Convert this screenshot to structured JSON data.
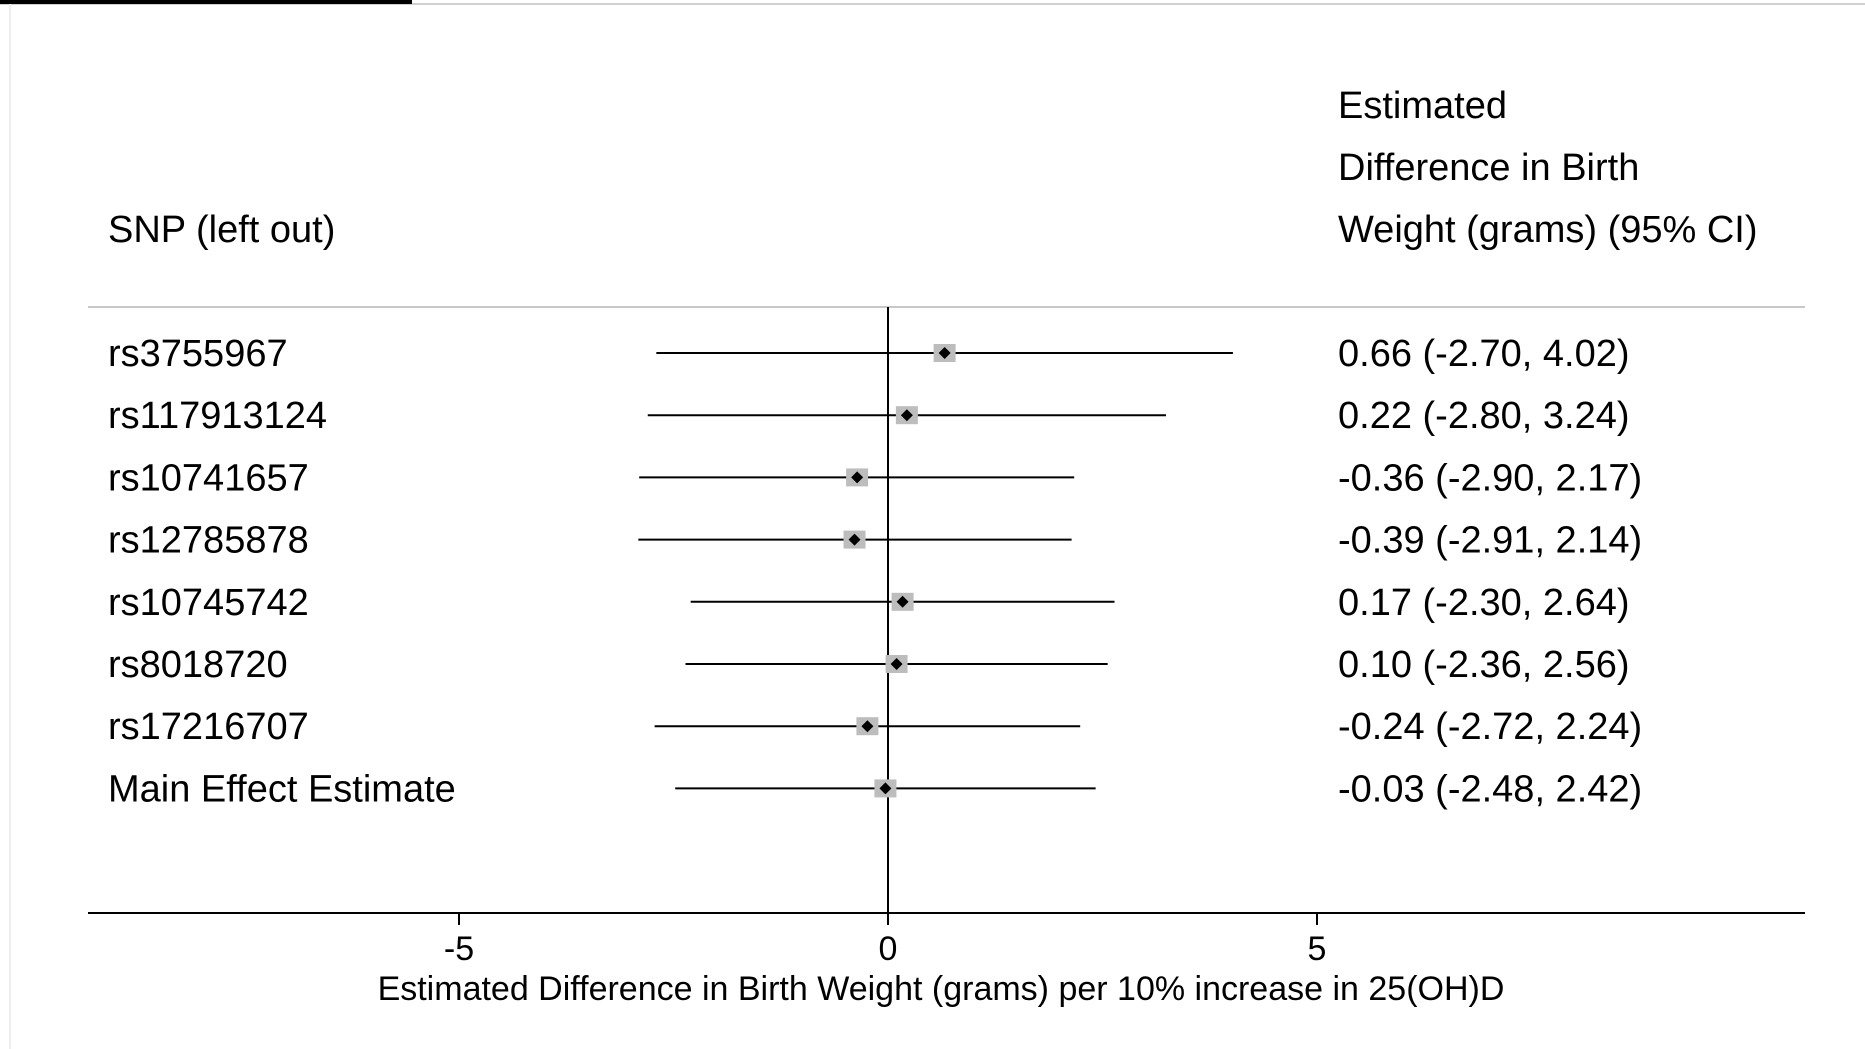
{
  "chart_data": {
    "type": "forest",
    "left_header": "SNP (left out)",
    "right_header": [
      "Estimated",
      "Difference in Birth",
      "Weight (grams) (95% CI)"
    ],
    "xlabel": "Estimated Difference in Birth Weight (grams) per 10% increase in 25(OH)D",
    "xlim": [
      -10,
      11.5
    ],
    "xticks": [
      -5,
      0,
      5
    ],
    "xtick_labels": [
      "-5",
      "0",
      "5"
    ],
    "reference_line": 0,
    "rows": [
      {
        "label": "rs3755967",
        "estimate": 0.66,
        "lower": -2.7,
        "upper": 4.02,
        "ci_text": "0.66 (-2.70, 4.02)"
      },
      {
        "label": "rs117913124",
        "estimate": 0.22,
        "lower": -2.8,
        "upper": 3.24,
        "ci_text": "0.22 (-2.80, 3.24)"
      },
      {
        "label": "rs10741657",
        "estimate": -0.36,
        "lower": -2.9,
        "upper": 2.17,
        "ci_text": "-0.36 (-2.90, 2.17)"
      },
      {
        "label": "rs12785878",
        "estimate": -0.39,
        "lower": -2.91,
        "upper": 2.14,
        "ci_text": "-0.39 (-2.91, 2.14)"
      },
      {
        "label": "rs10745742",
        "estimate": 0.17,
        "lower": -2.3,
        "upper": 2.64,
        "ci_text": "0.17 (-2.30, 2.64)"
      },
      {
        "label": "rs8018720",
        "estimate": 0.1,
        "lower": -2.36,
        "upper": 2.56,
        "ci_text": "0.10 (-2.36, 2.56)"
      },
      {
        "label": "rs17216707",
        "estimate": -0.24,
        "lower": -2.72,
        "upper": 2.24,
        "ci_text": "-0.24 (-2.72, 2.24)"
      },
      {
        "label": "Main Effect Estimate",
        "estimate": -0.03,
        "lower": -2.48,
        "upper": 2.42,
        "ci_text": "-0.03 (-2.48, 2.42)"
      }
    ],
    "colors": {
      "line": "#000000",
      "marker": "#000000",
      "weight_box": "#bdbdbd",
      "header_rule": "#c8c8c8",
      "frame_top": "#d0d0d0",
      "frame_tab": "#000000"
    }
  }
}
